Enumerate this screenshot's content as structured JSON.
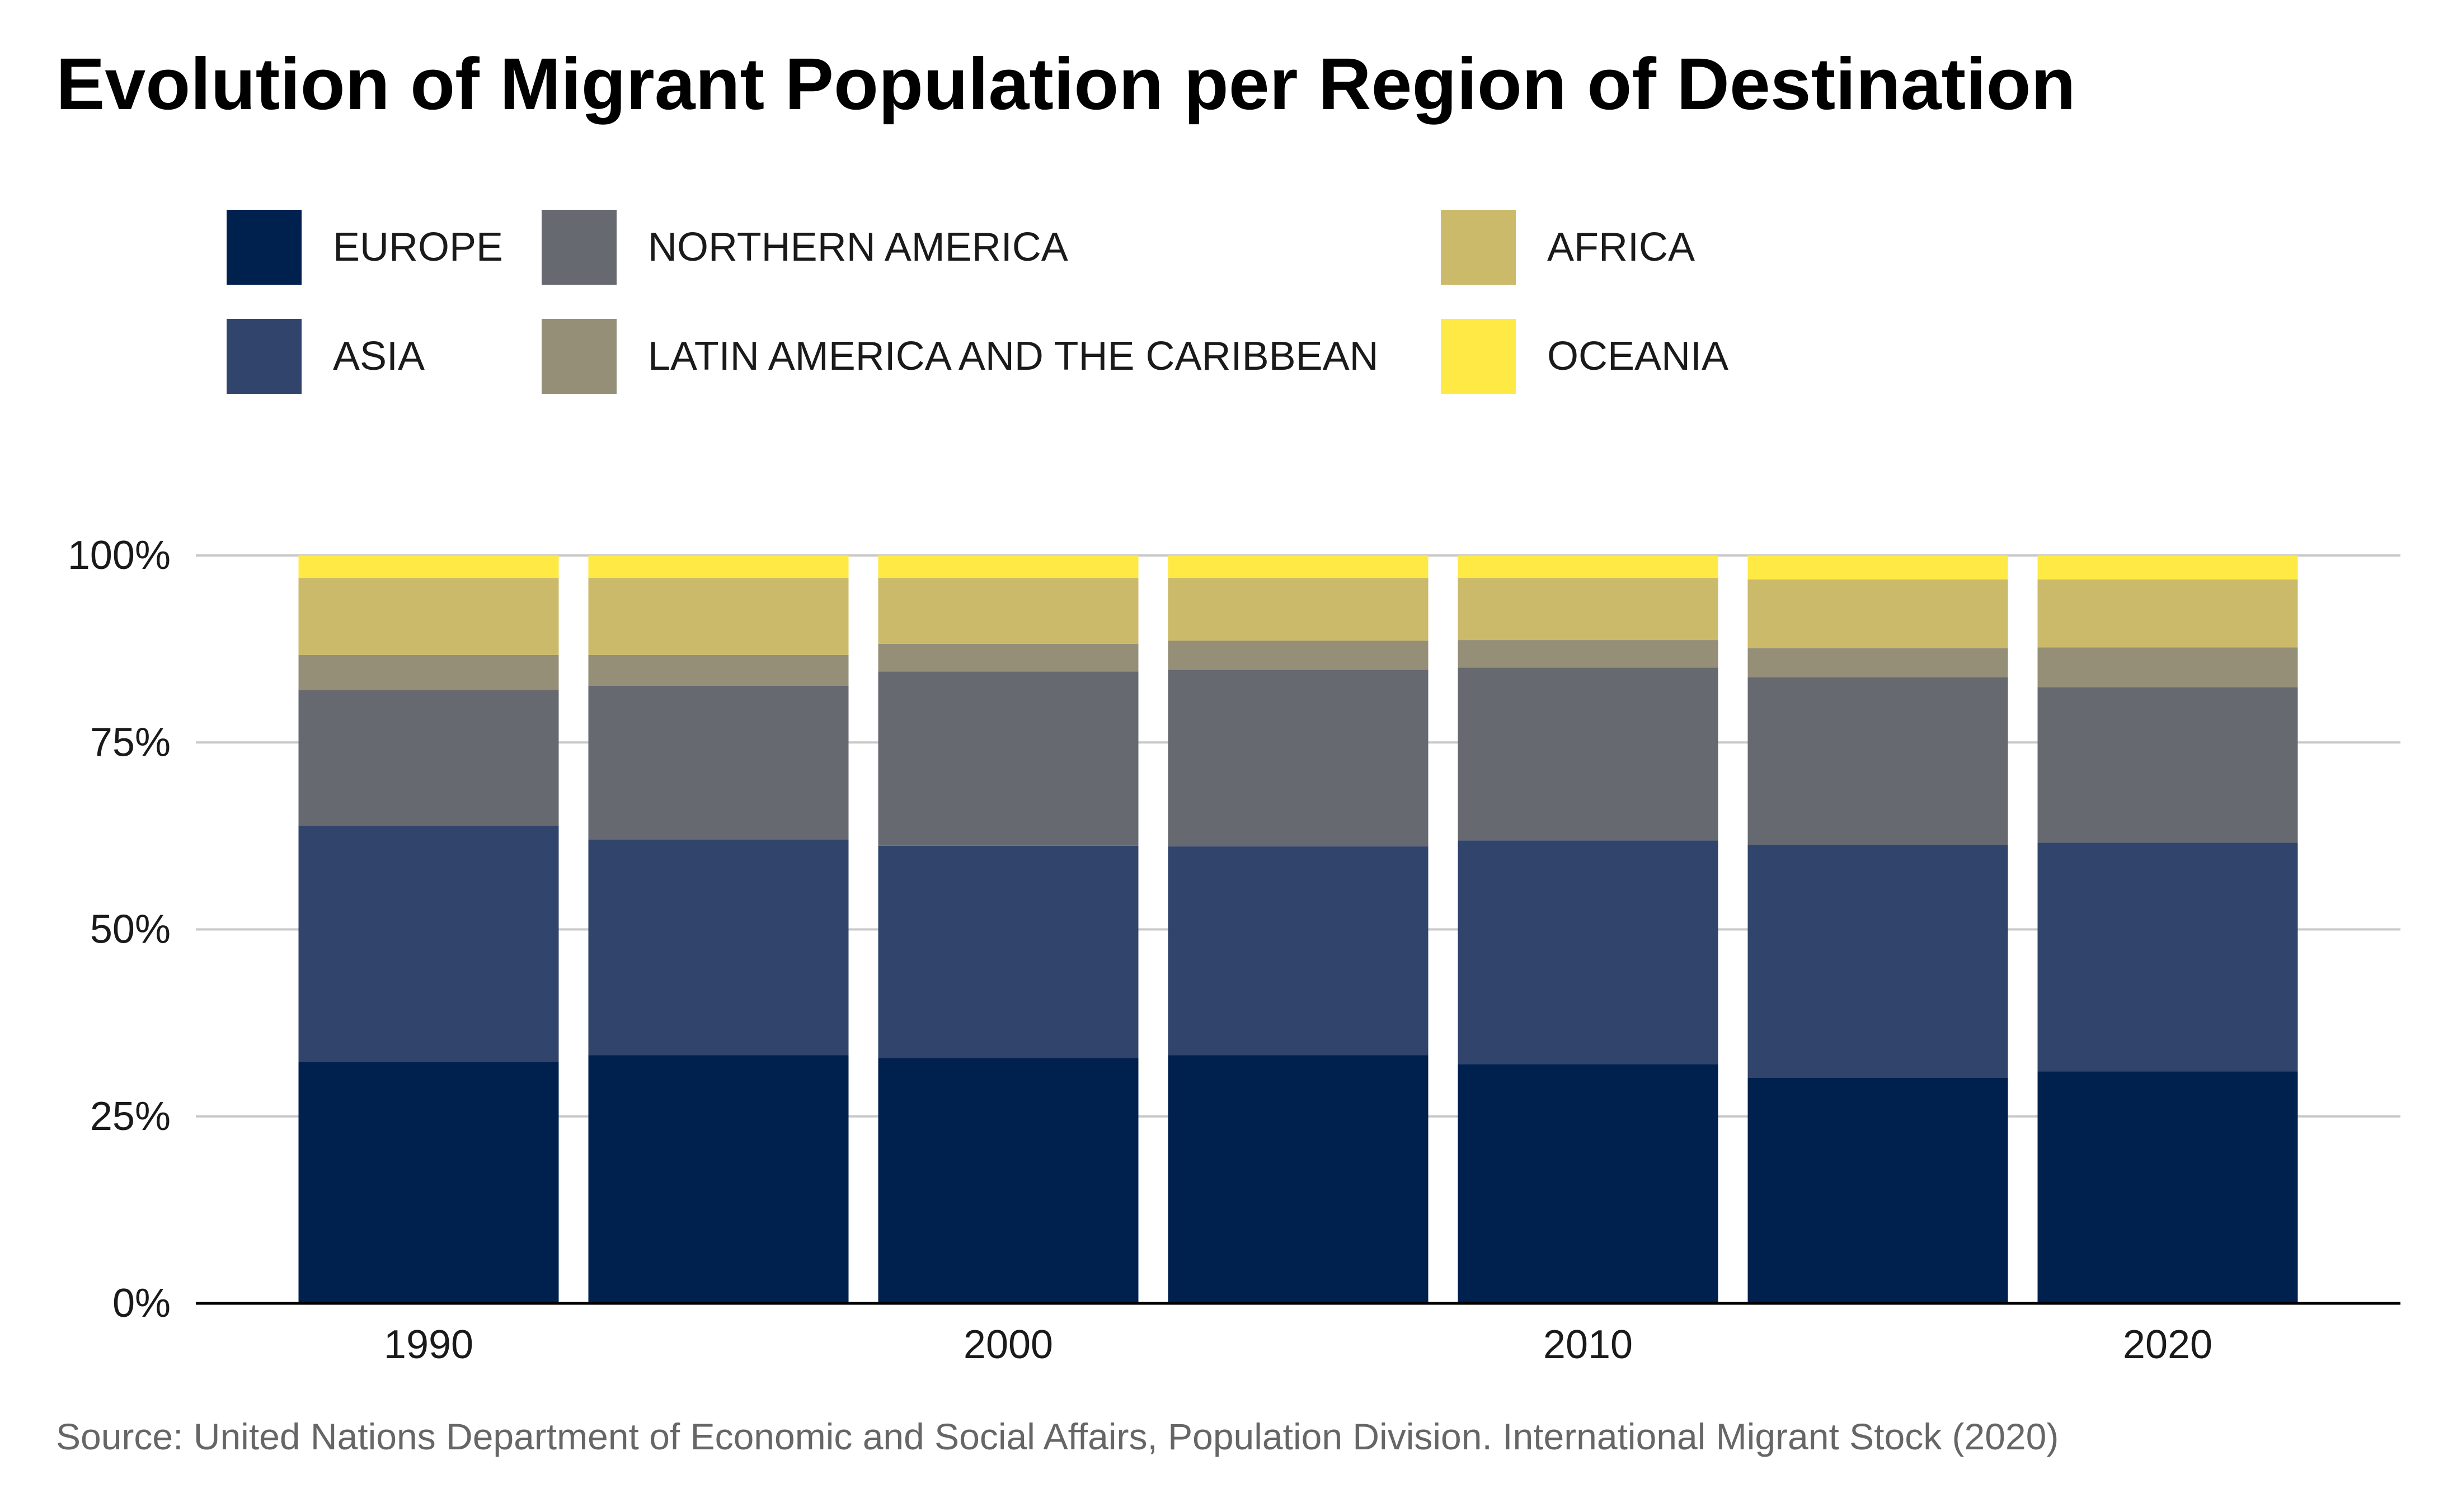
{
  "title": "Evolution of Migrant Population per Region of Destination",
  "source": "Source: United Nations Department of Economic and Social Affairs, Population Division. International Migrant Stock (2020)",
  "legend": [
    {
      "label": "EUROPE",
      "color": "#00204e"
    },
    {
      "label": "ASIA",
      "color": "#31446b"
    },
    {
      "label": "NORTHERN AMERICA",
      "color": "#666970"
    },
    {
      "label": "LATIN AMERICA AND THE CARIBBEAN",
      "color": "#958f78"
    },
    {
      "label": "AFRICA",
      "color": "#cbba69"
    },
    {
      "label": "OCEANIA",
      "color": "#ffe945"
    }
  ],
  "chart_data": {
    "type": "bar",
    "stacked": true,
    "normalized": true,
    "title": "Evolution of Migrant Population per Region of Destination",
    "xlabel": "",
    "ylabel": "",
    "x": [
      1990,
      1995,
      2000,
      2005,
      2010,
      2015,
      2020
    ],
    "xticks": [
      "1990",
      "2000",
      "2010",
      "2020"
    ],
    "ylim": [
      0,
      100
    ],
    "yticks": [
      "0%",
      "25%",
      "50%",
      "75%",
      "100%"
    ],
    "grid": true,
    "legend_position": "top",
    "series": [
      {
        "name": "EUROPE",
        "color": "#00204e",
        "values": [
          32.3,
          33.2,
          32.8,
          33.2,
          32.0,
          30.2,
          31.0
        ]
      },
      {
        "name": "ASIA",
        "color": "#31446b",
        "values": [
          31.6,
          28.8,
          28.4,
          27.9,
          29.9,
          31.1,
          30.6
        ]
      },
      {
        "name": "NORTHERN AMERICA",
        "color": "#666970",
        "values": [
          18.1,
          20.6,
          23.3,
          23.6,
          23.1,
          22.4,
          20.8
        ]
      },
      {
        "name": "LATIN AMERICA AND THE CARIBBEAN",
        "color": "#958f78",
        "values": [
          4.7,
          4.1,
          3.7,
          3.9,
          3.7,
          3.9,
          5.3
        ]
      },
      {
        "name": "AFRICA",
        "color": "#cbba69",
        "values": [
          10.3,
          10.3,
          8.8,
          8.4,
          8.3,
          9.2,
          9.1
        ]
      },
      {
        "name": "OCEANIA",
        "color": "#ffe945",
        "values": [
          3.0,
          3.0,
          3.0,
          3.0,
          3.0,
          3.2,
          3.2
        ]
      }
    ]
  }
}
